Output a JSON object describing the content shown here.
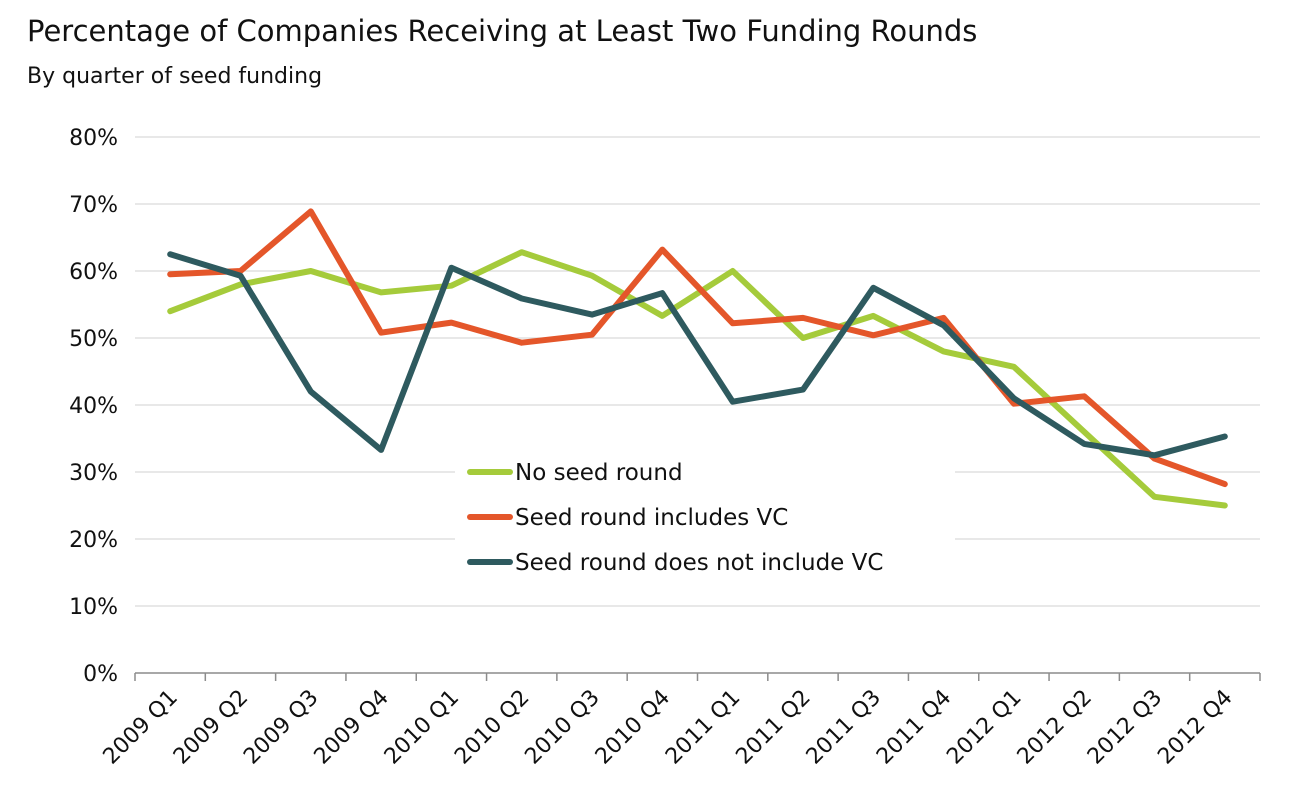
{
  "chart_data": {
    "type": "line",
    "title": "Percentage of Companies Receiving at Least Two Funding Rounds",
    "subtitle": "By quarter of seed funding",
    "categories": [
      "2009 Q1",
      "2009 Q2",
      "2009 Q3",
      "2009 Q4",
      "2010 Q1",
      "2010 Q2",
      "2010 Q3",
      "2010 Q4",
      "2011 Q1",
      "2011 Q2",
      "2011 Q3",
      "2011 Q4",
      "2012 Q1",
      "2012 Q2",
      "2012 Q3",
      "2012 Q4"
    ],
    "ylim": [
      0,
      80
    ],
    "yticks": [
      0,
      10,
      20,
      30,
      40,
      50,
      60,
      70,
      80
    ],
    "ytick_labels": [
      "0%",
      "10%",
      "20%",
      "30%",
      "40%",
      "50%",
      "60%",
      "70%",
      "80%"
    ],
    "grid": true,
    "legend_position": "center",
    "series": [
      {
        "name": "No seed round",
        "color": "#a5cb3b",
        "values": [
          54,
          58,
          60,
          56.8,
          57.8,
          62.8,
          59.3,
          53.3,
          60,
          50,
          53.3,
          48,
          45.7,
          36,
          26.3,
          25
        ]
      },
      {
        "name": "Seed round includes VC",
        "color": "#e4562a",
        "values": [
          59.5,
          60,
          68.9,
          50.8,
          52.3,
          49.3,
          50.5,
          63.2,
          52.2,
          53,
          50.4,
          53,
          40.2,
          41.3,
          32,
          28.2
        ]
      },
      {
        "name": "Seed round does not include VC",
        "color": "#2e5a5f",
        "values": [
          62.5,
          59.3,
          42,
          33.3,
          60.5,
          55.9,
          53.5,
          56.7,
          40.5,
          42.3,
          57.5,
          51.9,
          41,
          34.2,
          32.5,
          35.3
        ]
      }
    ]
  }
}
